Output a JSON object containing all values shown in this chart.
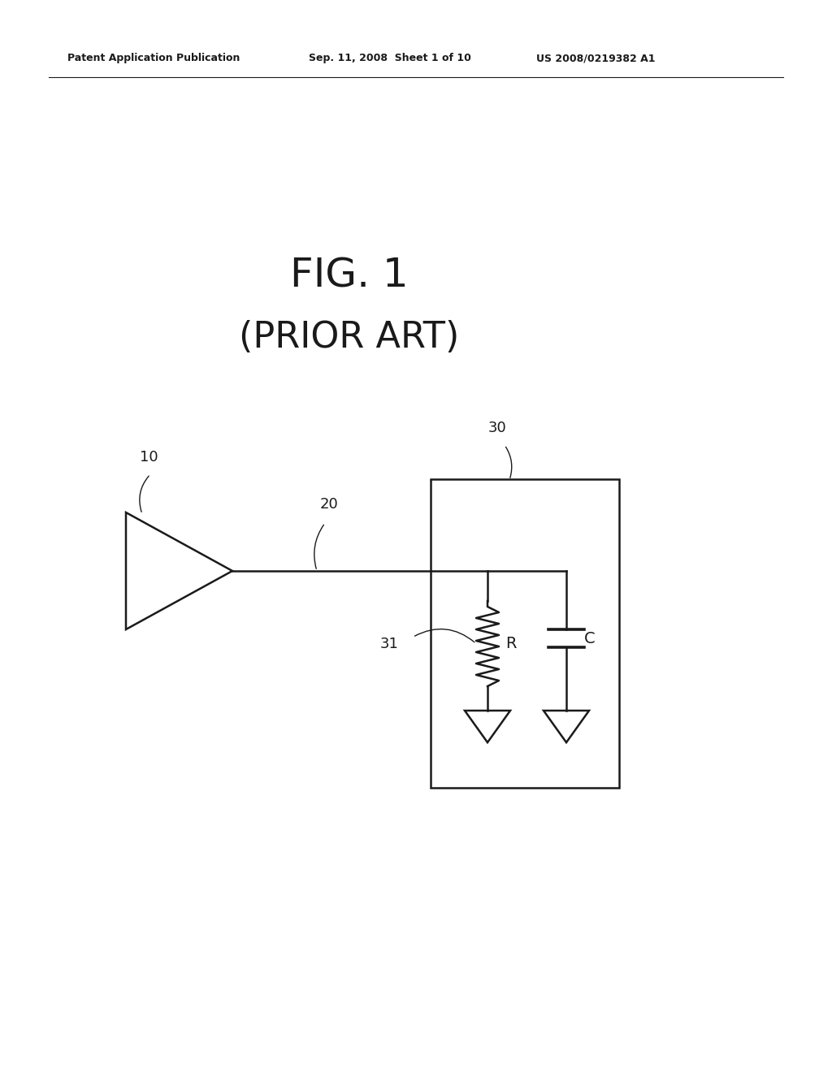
{
  "background_color": "#ffffff",
  "fig_width": 10.24,
  "fig_height": 13.2,
  "header_left": "Patent Application Publication",
  "header_mid": "Sep. 11, 2008  Sheet 1 of 10",
  "header_right": "US 2008/0219382 A1",
  "title_line1": "FIG. 1",
  "title_line2": "(PRIOR ART)",
  "label_10": "10",
  "label_20": "20",
  "label_30": "30",
  "label_31": "31",
  "label_R": "R",
  "label_C": "C",
  "line_color": "#1a1a1a",
  "text_color": "#1a1a1a",
  "header_fontsize": 9,
  "title1_fontsize": 36,
  "title2_fontsize": 32,
  "label_fontsize": 13
}
